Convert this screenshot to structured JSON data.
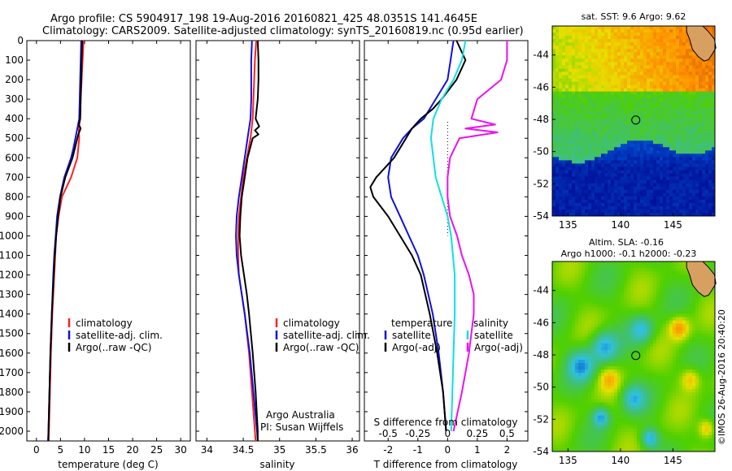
{
  "header": {
    "line1": "Argo profile: CS 5904917_198 19-Aug-2016 20160821_425 48.0351S 141.4645E",
    "line2": "Climatology: CARS2009. Satellite-adjusted climatology: synTS_20160819.nc (0.95d earlier)"
  },
  "colors": {
    "climatology": "#ff2020",
    "satellite": "#1010dd",
    "argo": "#000000",
    "sat_salinity": "#10e0e0",
    "argo_salinity": "#ee10ee"
  },
  "chart_data": [
    {
      "type": "line",
      "panel": "temperature",
      "xlabel": "temperature (deg C)",
      "xticks": [
        "0",
        "5",
        "10",
        "15",
        "20",
        "25",
        "30"
      ],
      "yticks": [
        "0",
        "100",
        "200",
        "300",
        "400",
        "500",
        "600",
        "700",
        "800",
        "900",
        "1000",
        "1100",
        "1200",
        "1300",
        "1400",
        "1500",
        "1600",
        "1700",
        "1800",
        "1900",
        "2000"
      ],
      "xlim": [
        -2,
        32
      ],
      "ylim": [
        2050,
        0
      ],
      "y_reversed": true,
      "legend": {
        "placement": "lower-middle",
        "entries": [
          "climatology",
          "satellite-adj. clim.",
          "Argo(..raw -QC)"
        ]
      },
      "series": [
        {
          "name": "climatology",
          "color": "#ff2020",
          "depth": [
            0,
            100,
            200,
            300,
            400,
            450,
            500,
            600,
            700,
            800,
            900,
            1000,
            1100,
            1200,
            1400,
            1600,
            1800,
            2000,
            2050
          ],
          "values": [
            9.8,
            9.6,
            9.4,
            9.2,
            9.1,
            8.8,
            8.9,
            8.5,
            7.2,
            5.3,
            4.6,
            4.1,
            3.9,
            3.7,
            3.3,
            3.0,
            2.8,
            2.6,
            2.5
          ]
        },
        {
          "name": "satellite-adj. clim.",
          "color": "#1010dd",
          "depth": [
            0,
            100,
            200,
            300,
            400,
            450,
            500,
            550,
            600,
            700,
            800,
            900,
            1000,
            1100,
            1200,
            1400,
            1600,
            1800,
            2000,
            2050
          ],
          "values": [
            9.3,
            9.2,
            9.1,
            9.0,
            8.9,
            8.5,
            8.1,
            7.7,
            7.2,
            5.8,
            4.9,
            4.3,
            4.0,
            3.7,
            3.5,
            3.2,
            2.9,
            2.7,
            2.5,
            2.4
          ]
        },
        {
          "name": "Argo(..raw -QC)",
          "color": "#000000",
          "depth": [
            0,
            100,
            200,
            300,
            400,
            430,
            450,
            480,
            500,
            600,
            700,
            800,
            900,
            1000,
            1100,
            1200,
            1400,
            1600,
            1800,
            2000,
            2050
          ],
          "values": [
            9.5,
            9.4,
            9.3,
            9.2,
            9.1,
            8.8,
            9.2,
            8.7,
            8.5,
            7.5,
            6.0,
            5.0,
            4.5,
            4.1,
            3.8,
            3.6,
            3.2,
            2.9,
            2.7,
            2.5,
            2.5
          ]
        }
      ]
    },
    {
      "type": "line",
      "panel": "salinity",
      "xlabel": "salinity",
      "xticks": [
        "34",
        "34.5",
        "35",
        "35.5",
        "36"
      ],
      "xlim": [
        33.85,
        36.1
      ],
      "ylim": [
        2050,
        0
      ],
      "y_reversed": true,
      "annotation": [
        "Argo Australia",
        "PI: Susan Wijffels"
      ],
      "legend": {
        "placement": "lower-middle",
        "entries": [
          "climatology",
          "satellite-adj. clim.",
          "Argo(..raw -QC)"
        ]
      },
      "series": [
        {
          "name": "climatology",
          "color": "#ff2020",
          "depth": [
            0,
            100,
            200,
            300,
            400,
            500,
            600,
            700,
            800,
            900,
            1000,
            1100,
            1200,
            1300,
            1400,
            1600,
            1800,
            2000,
            2050
          ],
          "values": [
            34.68,
            34.66,
            34.65,
            34.64,
            34.63,
            34.6,
            34.55,
            34.5,
            34.47,
            34.44,
            34.43,
            34.43,
            34.44,
            34.48,
            34.52,
            34.58,
            34.62,
            34.66,
            34.67
          ]
        },
        {
          "name": "satellite-adj. clim.",
          "color": "#1010dd",
          "depth": [
            0,
            100,
            200,
            300,
            400,
            450,
            500,
            600,
            700,
            800,
            900,
            1000,
            1100,
            1200,
            1300,
            1400,
            1600,
            1800,
            2000,
            2050
          ],
          "values": [
            34.62,
            34.61,
            34.61,
            34.61,
            34.6,
            34.58,
            34.56,
            34.52,
            34.48,
            34.44,
            34.41,
            34.4,
            34.41,
            34.44,
            34.48,
            34.52,
            34.59,
            34.64,
            34.69,
            34.7
          ]
        },
        {
          "name": "Argo(..raw -QC)",
          "color": "#000000",
          "depth": [
            0,
            100,
            200,
            300,
            400,
            440,
            460,
            480,
            500,
            600,
            700,
            800,
            900,
            1000,
            1100,
            1200,
            1300,
            1400,
            1600,
            1800,
            2000,
            2050
          ],
          "values": [
            34.7,
            34.71,
            34.71,
            34.7,
            34.67,
            34.72,
            34.66,
            34.71,
            34.63,
            34.56,
            34.52,
            34.48,
            34.46,
            34.45,
            34.47,
            34.51,
            34.55,
            34.58,
            34.63,
            34.67,
            34.7,
            34.7
          ]
        }
      ]
    },
    {
      "type": "line",
      "panel": "difference",
      "xlabel": "T difference from climatology",
      "xlabel2": "S difference from climatology",
      "xticks": [
        "-2",
        "-1",
        "0",
        "1",
        "2"
      ],
      "xticks_s": [
        "-0.5",
        "-0.25",
        "0",
        "0.25",
        "0.5"
      ],
      "xlim": [
        -2.8,
        2.7
      ],
      "ylim": [
        2050,
        0
      ],
      "y_reversed": true,
      "legend": {
        "placement": "lower",
        "temperature_title": "temperature",
        "salinity_title": "salinity",
        "entries": [
          "satellite",
          "Argo(-adj)",
          "satellite",
          "Argo(-adj)"
        ]
      },
      "series": [
        {
          "name": "satellite",
          "group": "temperature",
          "color": "#1010dd",
          "depth": [
            0,
            100,
            200,
            300,
            400,
            450,
            500,
            550,
            600,
            650,
            700,
            800,
            900,
            1000,
            1100,
            1200,
            1400,
            1600,
            1800,
            2000
          ],
          "values": [
            0.2,
            0.1,
            0.0,
            -0.4,
            -0.8,
            -1.2,
            -1.5,
            -1.7,
            -1.9,
            -1.95,
            -2.0,
            -1.9,
            -1.6,
            -1.3,
            -1.0,
            -0.8,
            -0.5,
            -0.3,
            -0.15,
            -0.05
          ]
        },
        {
          "name": "Argo(-adj)",
          "group": "temperature",
          "color": "#000000",
          "depth": [
            0,
            100,
            200,
            300,
            350,
            400,
            450,
            500,
            550,
            600,
            650,
            700,
            750,
            800,
            900,
            1000,
            1100,
            1200,
            1400,
            1600,
            1800,
            2000
          ],
          "values": [
            0.3,
            0.6,
            0.3,
            -0.2,
            -0.5,
            -0.9,
            -1.2,
            -1.4,
            -1.6,
            -1.8,
            -2.1,
            -2.4,
            -2.6,
            -2.5,
            -2.0,
            -1.6,
            -1.2,
            -0.9,
            -0.6,
            -0.35,
            -0.15,
            -0.05
          ]
        },
        {
          "name": "satellite",
          "group": "salinity",
          "color": "#10e0e0",
          "depth": [
            0,
            100,
            200,
            300,
            400,
            500,
            600,
            700,
            800,
            900,
            1000,
            1200,
            1400,
            1600,
            1800,
            2000
          ],
          "values": [
            0.15,
            0.12,
            0.05,
            -0.05,
            -0.12,
            -0.14,
            -0.12,
            -0.1,
            -0.05,
            0.0,
            0.03,
            0.06,
            0.06,
            0.05,
            0.04,
            0.03
          ]
        },
        {
          "name": "Argo(-adj)",
          "group": "salinity",
          "color": "#ee10ee",
          "depth": [
            0,
            100,
            200,
            300,
            400,
            430,
            450,
            470,
            500,
            600,
            700,
            800,
            900,
            1000,
            1100,
            1200,
            1300,
            1400,
            1600,
            1800,
            2000
          ],
          "values": [
            0.5,
            0.5,
            0.45,
            0.25,
            0.2,
            0.4,
            0.15,
            0.42,
            0.1,
            0.02,
            0.0,
            0.0,
            0.02,
            0.08,
            0.12,
            0.18,
            0.22,
            0.22,
            0.18,
            0.12,
            0.05
          ]
        }
      ]
    },
    {
      "type": "heatmap",
      "panel": "sst_map",
      "title": "sat. SST: 9.6 Argo: 9.62",
      "xticks": [
        "135",
        "140",
        "145"
      ],
      "yticks": [
        "-44",
        "-46",
        "-48",
        "-50",
        "-52",
        "-54"
      ],
      "xlim": [
        133.5,
        149
      ],
      "ylim": [
        -54,
        -42.2
      ],
      "marker": {
        "lon": 141.46,
        "lat": -48.04
      }
    },
    {
      "type": "heatmap",
      "panel": "sla_map",
      "title": "Altim. SLA: -0.16",
      "subtitle": "Argo h1000: -0.1 h2000: -0.23",
      "xticks": [
        "135",
        "140",
        "145"
      ],
      "yticks": [
        "-44",
        "-46",
        "-48",
        "-50",
        "-52",
        "-54"
      ],
      "xlim": [
        133.5,
        149
      ],
      "ylim": [
        -54,
        -42.2
      ],
      "marker": {
        "lon": 141.46,
        "lat": -48.04
      }
    }
  ],
  "credit": "©IMOS 26-Aug-2016 20:40:20"
}
